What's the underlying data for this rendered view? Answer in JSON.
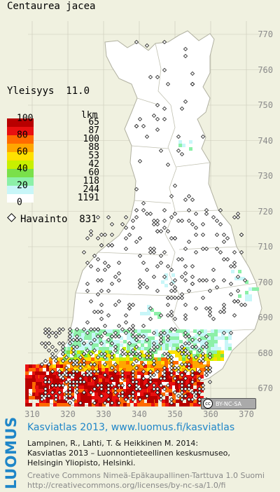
{
  "title": "Centaurea jacea",
  "frequency": {
    "label": "Yleisyys",
    "value": "11.0"
  },
  "legend": {
    "count_header": "lkm",
    "scale_labels": [
      "100",
      "80",
      "60",
      "40",
      "20",
      "0"
    ],
    "classes": [
      {
        "color": "#b80000",
        "count": "65"
      },
      {
        "color": "#e81010",
        "count": "87"
      },
      {
        "color": "#ff6a00",
        "count": "100"
      },
      {
        "color": "#ffa600",
        "count": "88"
      },
      {
        "color": "#ffe000",
        "count": "53"
      },
      {
        "color": "#c8f000",
        "count": "42"
      },
      {
        "color": "#7ae04a",
        "count": "60"
      },
      {
        "color": "#8cf0a8",
        "count": "118"
      },
      {
        "color": "#c8f6f8",
        "count": "244"
      },
      {
        "color": "#ffffff",
        "count": "1191"
      }
    ]
  },
  "observations": {
    "label": "Havainto",
    "count": "831"
  },
  "y_axis_labels": [
    "770",
    "760",
    "750",
    "740",
    "730",
    "720",
    "710",
    "700",
    "690",
    "680",
    "670"
  ],
  "x_axis_labels": [
    "310",
    "320",
    "330",
    "340",
    "350",
    "360",
    "370"
  ],
  "license_badge": "BY-NC-SA",
  "footer": {
    "logo": "LUOMUS",
    "atlas_link": "Kasviatlas 2013, www.luomus.fi/kasviatlas",
    "citation_lines": [
      "Lampinen, R., Lahti, T. & Heikkinen M. 2014:",
      "Kasviatlas 2013 – Luonnontieteellinen keskusmuseo,",
      "Helsingin Yliopisto, Helsinki."
    ],
    "license_lines": [
      "Creative Commons Nimeä-Epäkaupallinen-Tarttuva 1.0 Suomi",
      "http://creativecommons.org/licenses/by-nc-sa/1.0/fi"
    ]
  },
  "colors": {
    "background": "#f0f1e0",
    "link_blue": "#1f86c8",
    "grid": "#c9c9b8"
  }
}
